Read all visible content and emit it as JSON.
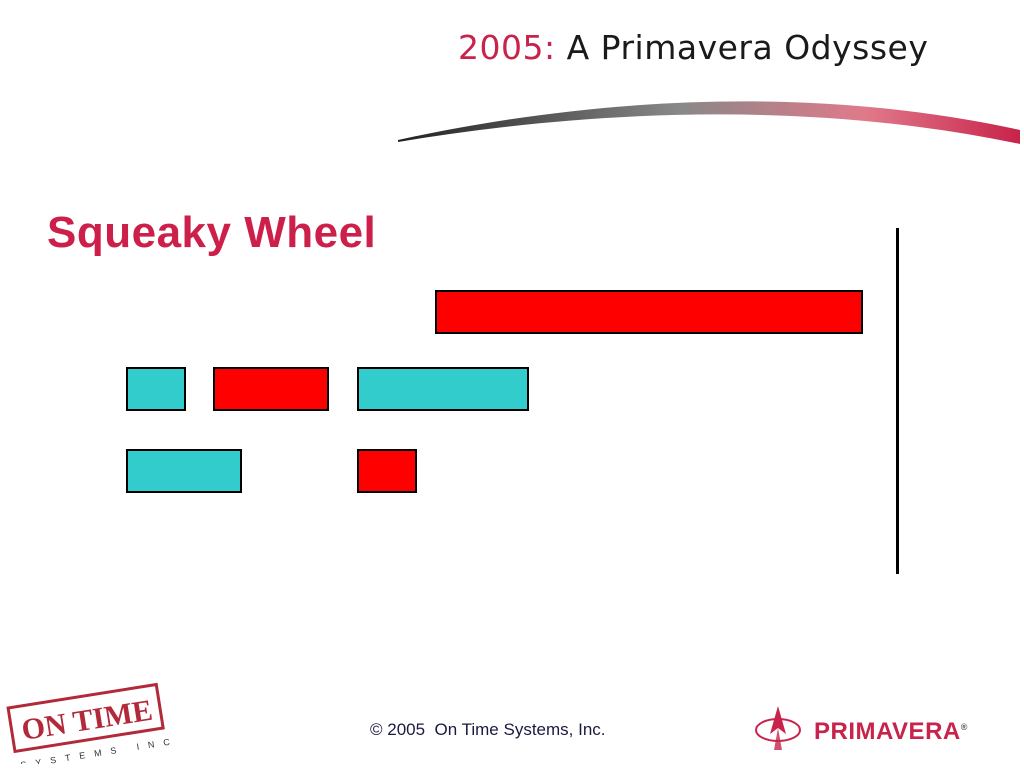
{
  "header": {
    "title_year": "2005:",
    "title_rest": "A Primavera Odyssey"
  },
  "slide": {
    "title": "Squeaky Wheel"
  },
  "diagram": {
    "block_colors": {
      "red": "#ff0000",
      "teal": "#33cccc"
    }
  },
  "footer": {
    "copyright": "© 2005  On Time Systems, Inc.",
    "on_time_logo": {
      "top": "ON TIME",
      "bottom": "SYSTEMS INC"
    },
    "primavera_logo": "PRIMAVERA",
    "primavera_mark": "®"
  },
  "colors": {
    "accent": "#c8234a",
    "title": "#cc1f4a"
  }
}
